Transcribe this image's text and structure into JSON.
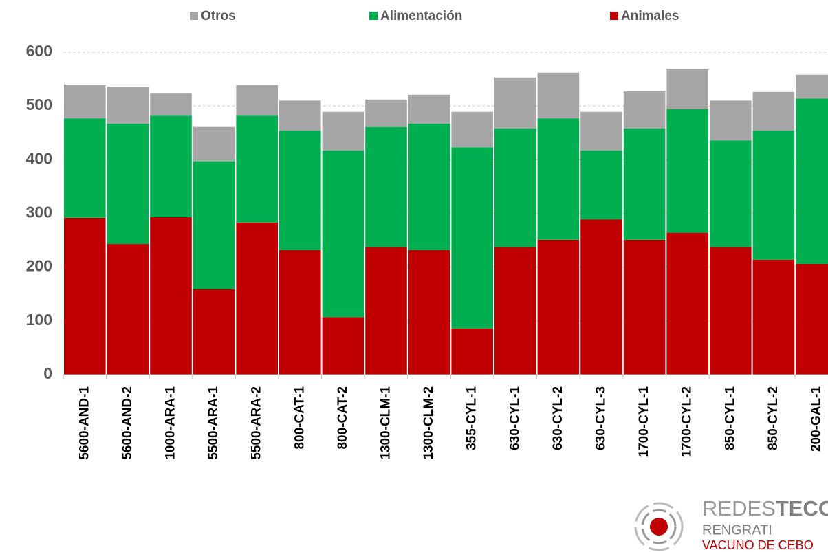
{
  "chart_data": {
    "type": "stacked-bar",
    "categories": [
      "5600-AND-1",
      "5600-AND-2",
      "1000-ARA-1",
      "5500-ARA-1",
      "5500-ARA-2",
      "800-CAT-1",
      "800-CAT-2",
      "1300-CLM-1",
      "1300-CLM-2",
      "355-CYL-1",
      "630-CYL-1",
      "630-CYL-2",
      "630-CYL-3",
      "1700-CYL-1",
      "1700-CYL-2",
      "850-CYL-1",
      "850-CYL-2",
      "200-GAL-1"
    ],
    "series": [
      {
        "name": "Animales",
        "color": "#c00000",
        "values": [
          292,
          243,
          293,
          159,
          283,
          232,
          107,
          237,
          232,
          86,
          237,
          251,
          289,
          251,
          264,
          237,
          214,
          206
        ]
      },
      {
        "name": "Alimentación",
        "color": "#00b050",
        "values": [
          185,
          224,
          189,
          238,
          199,
          222,
          310,
          224,
          235,
          337,
          221,
          226,
          128,
          207,
          230,
          199,
          240,
          308
        ]
      },
      {
        "name": "Otros",
        "color": "#a6a6a6",
        "values": [
          63,
          69,
          41,
          64,
          57,
          56,
          72,
          51,
          54,
          66,
          95,
          85,
          72,
          69,
          74,
          74,
          72,
          44
        ]
      }
    ],
    "ylim": [
      0,
      600
    ],
    "yticks": [
      0,
      100,
      200,
      300,
      400,
      500,
      600
    ],
    "grid": true,
    "legend": "top"
  },
  "logo": {
    "brand_light": "REDES",
    "brand_bold": "TECO",
    "line1": "RENGRATI",
    "line2": "VACUNO DE CEBO"
  }
}
